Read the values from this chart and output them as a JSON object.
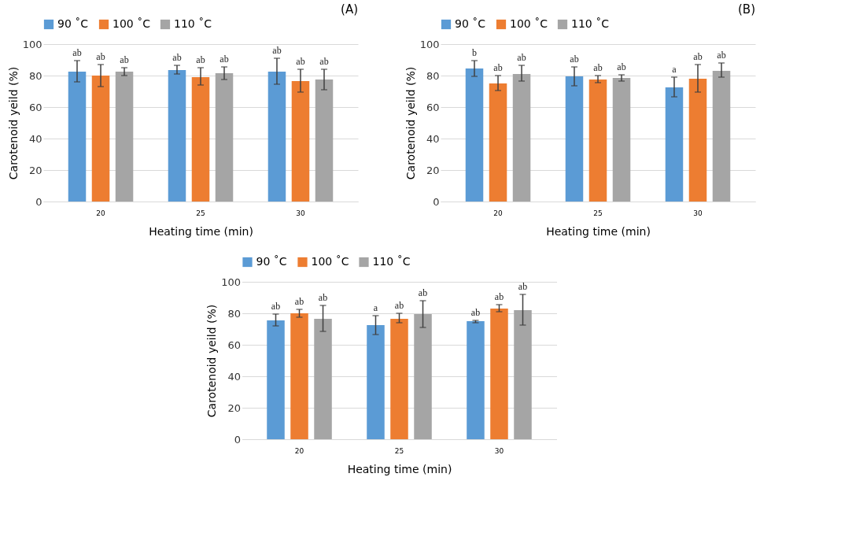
{
  "chart_data": [
    {
      "type": "bar",
      "title": "(A)",
      "categories": [
        "20",
        "25",
        "30"
      ],
      "xlabel": "Heating time (min)",
      "ylabel": "Carotenoid yeild (%)",
      "ylim": [
        0,
        100
      ],
      "yticks": [
        0,
        20,
        40,
        60,
        80,
        100
      ],
      "grid": "y",
      "legend": "top",
      "series": [
        {
          "name": "90 ˚C",
          "color": "#5b9bd5",
          "values": [
            82.5,
            83.5,
            82.5
          ],
          "errors": [
            [
              76,
              89.5
            ],
            [
              81,
              86.5
            ],
            [
              74.5,
              91
            ]
          ],
          "value_labels": [
            "ab",
            "ab",
            "ab"
          ]
        },
        {
          "name": "100 ˚C",
          "color": "#ed7d31",
          "values": [
            80,
            79,
            76.5
          ],
          "errors": [
            [
              73,
              87
            ],
            [
              74,
              85
            ],
            [
              69.5,
              84
            ]
          ],
          "value_labels": [
            "ab",
            "ab",
            "ab"
          ]
        },
        {
          "name": "110 ˚C",
          "color": "#a5a5a5",
          "values": [
            82.5,
            81.5,
            77.5
          ],
          "errors": [
            [
              80,
              85
            ],
            [
              77.5,
              85.5
            ],
            [
              71,
              84
            ]
          ],
          "value_labels": [
            "ab",
            "ab",
            "ab"
          ]
        }
      ]
    },
    {
      "type": "bar",
      "title": "(B)",
      "categories": [
        "20",
        "25",
        "30"
      ],
      "xlabel": "Heating time (min)",
      "ylabel": "Carotenoid yeild (%)",
      "ylim": [
        0,
        100
      ],
      "yticks": [
        0,
        20,
        40,
        60,
        80,
        100
      ],
      "grid": "y",
      "legend": "top",
      "series": [
        {
          "name": "90 ˚C",
          "color": "#5b9bd5",
          "values": [
            84.5,
            79.5,
            72.5
          ],
          "errors": [
            [
              79.5,
              89.5
            ],
            [
              73.5,
              85.5
            ],
            [
              66.5,
              79
            ]
          ],
          "value_labels": [
            "b",
            "ab",
            "a"
          ]
        },
        {
          "name": "100 ˚C",
          "color": "#ed7d31",
          "values": [
            75,
            77.5,
            78
          ],
          "errors": [
            [
              70.5,
              80
            ],
            [
              75.5,
              80
            ],
            [
              69.5,
              87
            ]
          ],
          "value_labels": [
            "ab",
            "ab",
            "ab"
          ]
        },
        {
          "name": "110 ˚C",
          "color": "#a5a5a5",
          "values": [
            81,
            78.5,
            83
          ],
          "errors": [
            [
              76.5,
              86.5
            ],
            [
              76.5,
              80.5
            ],
            [
              79,
              88
            ]
          ],
          "value_labels": [
            "ab",
            "ab",
            "ab"
          ]
        }
      ]
    },
    {
      "type": "bar",
      "categories": [
        "20",
        "25",
        "30"
      ],
      "xlabel": "Heating time (min)",
      "ylabel": "Carotenoid yeild (%)",
      "ylim": [
        0,
        100
      ],
      "yticks": [
        0,
        20,
        40,
        60,
        80,
        100
      ],
      "grid": "y",
      "legend": "top",
      "series": [
        {
          "name": "90 ˚C",
          "color": "#5b9bd5",
          "values": [
            75.5,
            72.5,
            75
          ],
          "errors": [
            [
              72,
              79.5
            ],
            [
              66.5,
              78.5
            ],
            [
              74,
              75.5
            ]
          ],
          "value_labels": [
            "ab",
            "a",
            "ab"
          ]
        },
        {
          "name": "100 ˚C",
          "color": "#ed7d31",
          "values": [
            80,
            76.5,
            83
          ],
          "errors": [
            [
              77.5,
              82.5
            ],
            [
              74,
              80
            ],
            [
              81,
              85.5
            ]
          ],
          "value_labels": [
            "ab",
            "ab",
            "ab"
          ]
        },
        {
          "name": "110 ˚C",
          "color": "#a5a5a5",
          "values": [
            76.5,
            79.5,
            82
          ],
          "errors": [
            [
              68.5,
              85
            ],
            [
              71,
              88
            ],
            [
              72.5,
              92
            ]
          ],
          "value_labels": [
            "ab",
            "ab",
            "ab"
          ]
        }
      ]
    }
  ]
}
